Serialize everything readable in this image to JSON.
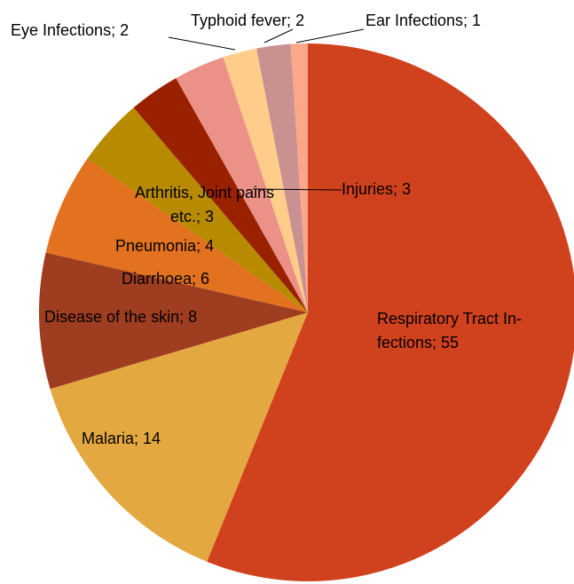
{
  "chart_data": {
    "type": "pie",
    "categories": [
      "Respiratory Tract Infections",
      "Malaria",
      "Disease of the skin",
      "Diarrhoea",
      "Pneumonia",
      "Arthritis, Joint pains etc.",
      "Injuries",
      "Eye Infections",
      "Typhoid fever",
      "Ear Infections"
    ],
    "values": [
      55,
      14,
      8,
      6,
      4,
      3,
      3,
      2,
      2,
      1
    ],
    "value_labels": [
      "Respiratory Tract In-\nfections; 55",
      "Malaria; 14",
      "Disease of the skin; 8",
      "Diarrhoea; 6",
      "Pneumonia; 4",
      "Arthritis, Joint pains\netc.; 3",
      "Injuries; 3",
      "Eye Infections; 2",
      "Typhoid fever; 2",
      "Ear Infections; 1"
    ],
    "colors": [
      "#d0421e",
      "#e3a840",
      "#9f3d20",
      "#e2721f",
      "#b88a00",
      "#9a2100",
      "#ec9188",
      "#ffcc8a",
      "#c99190",
      "#fca68a"
    ]
  }
}
